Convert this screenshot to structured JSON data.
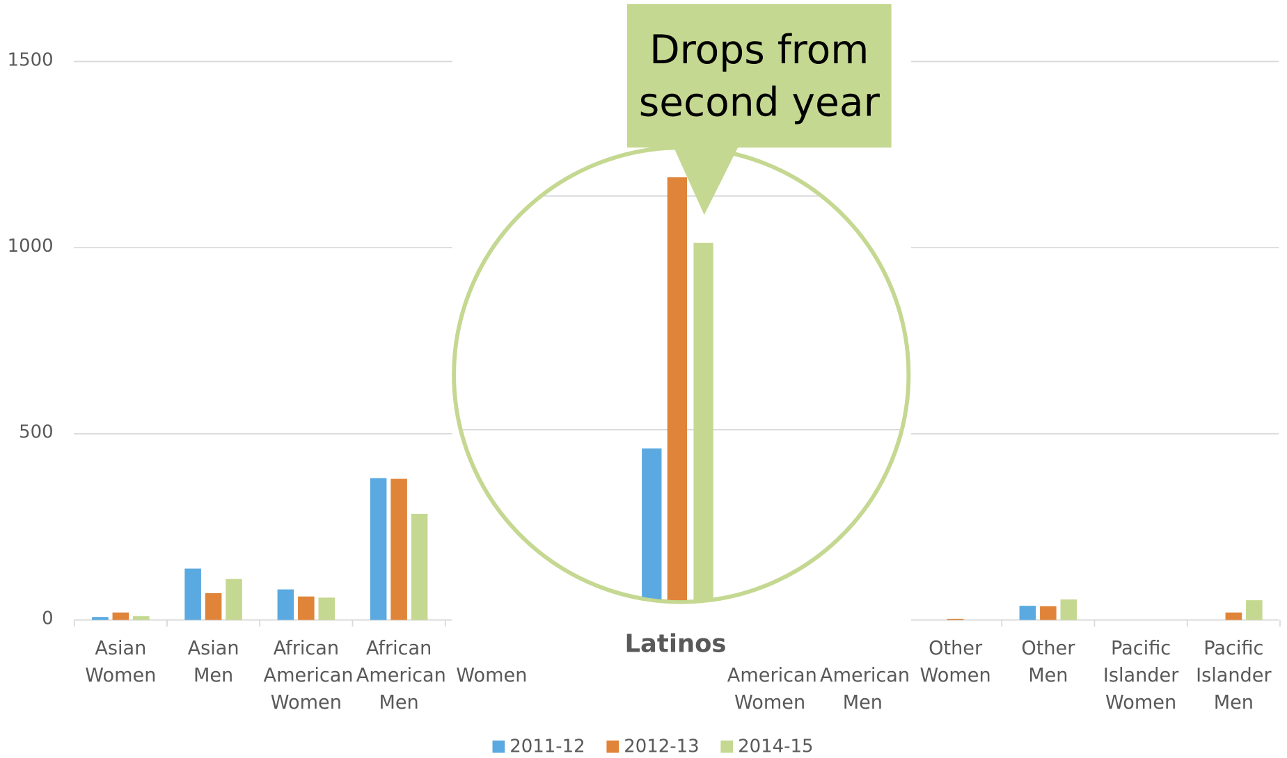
{
  "chart_data": {
    "type": "bar",
    "categories": [
      "Asian Women",
      "Asian Men",
      "African American Women",
      "African American Men",
      "Women",
      null,
      null,
      "American Women",
      "American Men",
      "Other Women",
      "Other Men",
      "Pacific Islander Women",
      "Pacific Islander Men"
    ],
    "series": [
      {
        "name": "2011-12",
        "color": "#5aa9e0",
        "values": [
          8,
          138,
          82,
          381,
          null,
          null,
          460,
          null,
          null,
          0,
          38,
          0,
          0
        ]
      },
      {
        "name": "2012-13",
        "color": "#e0843a",
        "values": [
          20,
          72,
          63,
          379,
          null,
          null,
          1040,
          null,
          null,
          3,
          37,
          0,
          20
        ]
      },
      {
        "name": "2014-15",
        "color": "#c5d891",
        "values": [
          10,
          110,
          60,
          285,
          null,
          null,
          900,
          null,
          null,
          0,
          55,
          0,
          53
        ]
      }
    ],
    "ylim": [
      0,
      1500
    ],
    "yticks": [
      0,
      500,
      1000,
      1500
    ],
    "grid": true,
    "annotation": "Drops from second year",
    "zoom_label": "Latinos"
  }
}
